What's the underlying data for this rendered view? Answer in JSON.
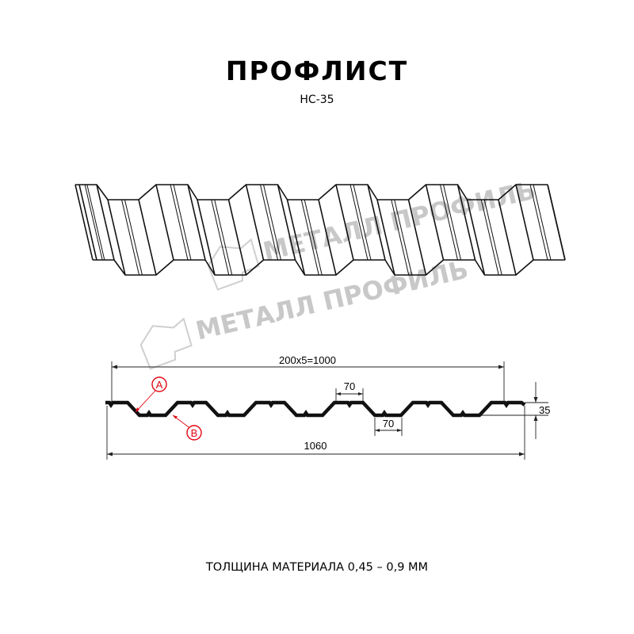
{
  "header": {
    "title": "ПРОФЛИСТ",
    "subtitle": "НС-35"
  },
  "watermark": {
    "text": "МЕТАЛЛ ПРОФИЛЬ",
    "color": "#c8c8c8"
  },
  "drawing": {
    "dimensions": {
      "pitch_total": "200x5=1000",
      "total_width": "1060",
      "top_flat": "70",
      "bottom_flat": "70",
      "height": "35"
    },
    "callouts": {
      "a": "A",
      "b": "B",
      "color": "#e30613"
    },
    "profile_color": "#111111"
  },
  "footer": {
    "thickness": "ТОЛЩИНА МАТЕРИАЛА 0,45 – 0,9 ММ"
  }
}
